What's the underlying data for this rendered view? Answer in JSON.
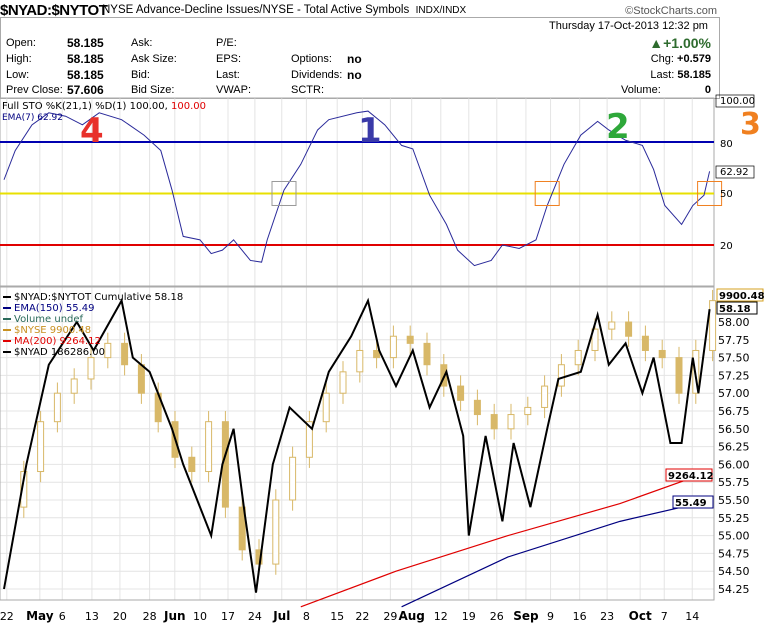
{
  "header": {
    "symbol": "$NYAD:$NYTOT",
    "description": "NYSE Advance-Decline Issues/NYSE - Total Active Symbols",
    "exchange": "INDX/INDX",
    "copyright": "©StockCharts.com",
    "datetime": "Thursday  17-Oct-2013  12:32 pm"
  },
  "quote": {
    "open_label": "Open:",
    "open": "58.185",
    "high_label": "High:",
    "high": "58.185",
    "low_label": "Low:",
    "low": "58.185",
    "prev_label": "Prev Close:",
    "prev": "57.606",
    "ask": "Ask:",
    "ask_size": "Ask Size:",
    "bid": "Bid:",
    "bid_size": "Bid Size:",
    "pe": "P/E:",
    "eps": "EPS:",
    "last_mid": "Last:",
    "vwap": "VWAP:",
    "options_label": "Options:",
    "options": "no",
    "dividends_label": "Dividends:",
    "dividends": "no",
    "sctr": "SCTR:",
    "pct_change": "+1.00%",
    "chg_label": "Chg:",
    "chg": "+0.579",
    "last_label": "Last:",
    "last": "58.185",
    "volume_label": "Volume:",
    "volume": "0",
    "up_color": "#2e6b2e"
  },
  "annotations": [
    {
      "text": "4",
      "color": "#e8302a"
    },
    {
      "text": "1",
      "color": "#3a3aa8"
    },
    {
      "text": "2",
      "color": "#2ea83a"
    },
    {
      "text": "3",
      "color": "#f08020"
    }
  ],
  "chart_data": [
    {
      "type": "line",
      "title": "Full STO %K(21,1) %D(1) 100.00, 100.00",
      "legend": [
        "Full STO %K(21,1) %D(1) 100.00, ",
        "100.00",
        "EMA(7) 62.92"
      ],
      "ylim": [
        0,
        110
      ],
      "levels": [
        {
          "value": 80,
          "color": "#0000b0"
        },
        {
          "value": 50,
          "color": "#e8e000"
        },
        {
          "value": 20,
          "color": "#e00000"
        }
      ],
      "right_labels": [
        "100.00",
        "80",
        "62.92",
        "50",
        "20"
      ],
      "x": [
        0,
        2,
        5,
        8,
        11,
        14,
        17,
        21,
        25,
        28,
        30,
        32,
        35,
        37,
        39,
        41,
        44,
        46,
        47,
        50,
        53,
        56,
        58,
        63,
        65,
        68,
        71,
        73,
        76,
        79,
        81,
        84,
        87,
        89,
        92,
        95,
        97,
        100,
        103,
        106,
        108,
        111,
        114,
        116,
        118,
        121,
        123,
        125,
        126
      ],
      "values": [
        58,
        75,
        90,
        97,
        95,
        90,
        97,
        93,
        84,
        75,
        52,
        25,
        23,
        15,
        17,
        23,
        11,
        10,
        23,
        52,
        67,
        87,
        93,
        97,
        98,
        90,
        78,
        76,
        49,
        32,
        17,
        8,
        11,
        20,
        18,
        23,
        43,
        67,
        84,
        92,
        87,
        81,
        78,
        64,
        43,
        32,
        43,
        49,
        62.92
      ],
      "signal_boxes": [
        50,
        97,
        126
      ]
    },
    {
      "type": "line",
      "title": "$NYAD:$NYTOT Cumulative 58.18",
      "legend": [
        "$NYAD:$NYTOT  Cumulative 58.18",
        "EMA(150) 55.49",
        "Volume undef",
        "$NYSE  9900.48",
        "MA(200) 9264.12",
        "$NYAD  186286.00"
      ],
      "ylim": [
        53.95,
        58.45
      ],
      "yticks": [
        "58.00",
        "57.75",
        "57.50",
        "57.25",
        "57.00",
        "56.75",
        "56.50",
        "56.25",
        "56.00",
        "55.75",
        "55.50",
        "55.25",
        "55.00",
        "54.75",
        "54.50",
        "54.25"
      ],
      "tags": [
        {
          "text": "9900.48",
          "color": "#d4a020"
        },
        {
          "text": "58.18",
          "color": "#000"
        },
        {
          "text": "9264.12",
          "color": "#e00000"
        },
        {
          "text": "55.49",
          "color": "#000080"
        }
      ],
      "series": [
        {
          "name": "$NYAD:$NYTOT",
          "color": "#000",
          "x": [
            0,
            4,
            8,
            13,
            16,
            21,
            23,
            26,
            30,
            32,
            37,
            39,
            41,
            43,
            45,
            48,
            51,
            55,
            58,
            62,
            65,
            67,
            70,
            73,
            76,
            79,
            82,
            83,
            86,
            89,
            91,
            94,
            97,
            99,
            103,
            106,
            108,
            111,
            114,
            116,
            119,
            121,
            123,
            124,
            126
          ],
          "values": [
            54.25,
            56.0,
            57.4,
            58.0,
            57.6,
            58.3,
            57.5,
            57.3,
            56.5,
            56.0,
            55.0,
            56.0,
            56.5,
            55.3,
            54.2,
            56.0,
            56.8,
            56.5,
            57.3,
            57.8,
            58.3,
            57.6,
            57.1,
            57.6,
            56.8,
            57.3,
            56.4,
            55.0,
            56.4,
            55.2,
            56.3,
            55.4,
            56.5,
            57.2,
            57.3,
            58.1,
            57.4,
            57.7,
            57.0,
            57.5,
            56.3,
            56.3,
            57.5,
            57.0,
            58.18
          ]
        },
        {
          "name": "$NYSE",
          "color": "#d8b868",
          "x": [
            0,
            3,
            6,
            9,
            12,
            15,
            18,
            21,
            24,
            27,
            30,
            33,
            36,
            39,
            42,
            45,
            48,
            51,
            54,
            57,
            60,
            63,
            66,
            69,
            72,
            75,
            78,
            81,
            84,
            87,
            90,
            93,
            96,
            99,
            102,
            105,
            108,
            111,
            114,
            117,
            120,
            123,
            126
          ],
          "values": [
            55.4,
            55.9,
            56.6,
            57.0,
            57.2,
            57.5,
            57.7,
            57.4,
            57.0,
            56.6,
            56.1,
            55.9,
            56.6,
            55.4,
            54.8,
            54.6,
            55.5,
            56.1,
            56.6,
            57.0,
            57.3,
            57.6,
            57.5,
            57.8,
            57.7,
            57.4,
            57.1,
            56.9,
            56.7,
            56.5,
            56.7,
            56.8,
            57.1,
            57.4,
            57.6,
            57.9,
            58.0,
            57.8,
            57.6,
            57.5,
            57.0,
            57.6,
            58.3
          ]
        },
        {
          "name": "MA(200)",
          "color": "#e00000",
          "x": [
            53,
            70,
            90,
            110,
            126
          ],
          "values": [
            54.0,
            54.5,
            55.0,
            55.45,
            55.9
          ]
        },
        {
          "name": "EMA(150)",
          "color": "#000080",
          "x": [
            71,
            90,
            110,
            126
          ],
          "values": [
            54.0,
            54.7,
            55.2,
            55.49
          ]
        }
      ]
    }
  ],
  "xaxis": {
    "ticks": [
      {
        "label": "22",
        "i": 0.5
      },
      {
        "label": "May",
        "i": 6.4,
        "bold": true
      },
      {
        "label": "6",
        "i": 10.4
      },
      {
        "label": "13",
        "i": 15.7
      },
      {
        "label": "20",
        "i": 20.7
      },
      {
        "label": "28",
        "i": 26
      },
      {
        "label": "Jun",
        "i": 30.5,
        "bold": true
      },
      {
        "label": "10",
        "i": 35
      },
      {
        "label": "17",
        "i": 40
      },
      {
        "label": "24",
        "i": 44.8
      },
      {
        "label": "Jul",
        "i": 49.6,
        "bold": true
      },
      {
        "label": "8",
        "i": 54
      },
      {
        "label": "15",
        "i": 59.5
      },
      {
        "label": "22",
        "i": 64
      },
      {
        "label": "29",
        "i": 69
      },
      {
        "label": "Aug",
        "i": 72.8,
        "bold": true
      },
      {
        "label": "12",
        "i": 78
      },
      {
        "label": "19",
        "i": 83
      },
      {
        "label": "26",
        "i": 88
      },
      {
        "label": "Sep",
        "i": 93.2,
        "bold": true
      },
      {
        "label": "9",
        "i": 97.6
      },
      {
        "label": "16",
        "i": 102.8
      },
      {
        "label": "23",
        "i": 107.7
      },
      {
        "label": "Oct",
        "i": 113.6,
        "bold": true
      },
      {
        "label": "7",
        "i": 117.9
      },
      {
        "label": "14",
        "i": 122.9
      }
    ]
  }
}
